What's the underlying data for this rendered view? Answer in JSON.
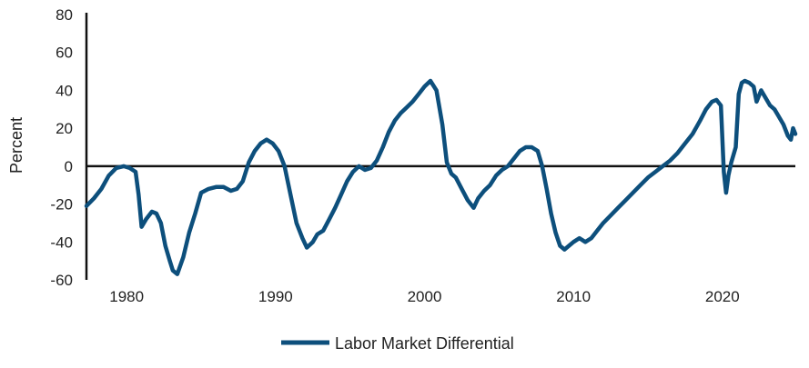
{
  "chart_data": {
    "type": "line",
    "title": "",
    "xlabel": "",
    "ylabel": "Percent",
    "xlim": [
      1977.3,
      2024.9
    ],
    "ylim": [
      -60,
      80
    ],
    "x_ticks": [
      1980,
      1990,
      2000,
      2010,
      2020
    ],
    "x_tick_labels": [
      "1980",
      "1990",
      "2000",
      "2010",
      "2020"
    ],
    "y_ticks": [
      80,
      60,
      40,
      20,
      0,
      -20,
      -40,
      -60
    ],
    "y_tick_labels": [
      "80",
      "60",
      "40",
      "20",
      "0",
      "-20",
      "-40",
      "-60"
    ],
    "zero_line": true,
    "grid": false,
    "legend_position": "bottom-center",
    "colors": {
      "series": "#0d4f7c",
      "axis": "#111111",
      "text": "#222222"
    },
    "series": [
      {
        "name": "Labor Market Differential",
        "x": [
          1977.3,
          1977.8,
          1978.3,
          1978.8,
          1979.3,
          1979.8,
          1980.2,
          1980.6,
          1980.8,
          1981.0,
          1981.3,
          1981.7,
          1982.0,
          1982.3,
          1982.6,
          1982.9,
          1983.1,
          1983.4,
          1983.8,
          1984.2,
          1984.6,
          1985.0,
          1985.5,
          1986.0,
          1986.5,
          1987.0,
          1987.4,
          1987.8,
          1988.2,
          1988.6,
          1989.0,
          1989.4,
          1989.8,
          1990.2,
          1990.6,
          1991.0,
          1991.4,
          1991.8,
          1992.1,
          1992.5,
          1992.8,
          1993.2,
          1993.6,
          1994.0,
          1994.4,
          1994.8,
          1995.2,
          1995.6,
          1996.0,
          1996.4,
          1996.8,
          1997.2,
          1997.6,
          1998.0,
          1998.4,
          1998.8,
          1999.2,
          1999.6,
          2000.0,
          2000.4,
          2000.8,
          2001.2,
          2001.5,
          2001.8,
          2002.1,
          2002.5,
          2002.9,
          2003.3,
          2003.6,
          2004.0,
          2004.4,
          2004.8,
          2005.2,
          2005.6,
          2006.0,
          2006.4,
          2006.8,
          2007.2,
          2007.6,
          2007.9,
          2008.2,
          2008.5,
          2008.8,
          2009.1,
          2009.4,
          2009.7,
          2010.0,
          2010.4,
          2010.8,
          2011.2,
          2011.6,
          2012.0,
          2012.5,
          2013.0,
          2013.5,
          2014.0,
          2014.5,
          2015.0,
          2015.5,
          2016.0,
          2016.5,
          2017.0,
          2017.5,
          2018.0,
          2018.5,
          2018.9,
          2019.3,
          2019.6,
          2019.9,
          2020.1,
          2020.25,
          2020.4,
          2020.6,
          2020.9,
          2021.1,
          2021.3,
          2021.5,
          2021.8,
          2022.1,
          2022.3,
          2022.6,
          2022.9,
          2023.2,
          2023.5,
          2023.8,
          2024.1,
          2024.4,
          2024.6,
          2024.75,
          2024.9
        ],
        "y": [
          -21,
          -17,
          -12,
          -5,
          -1,
          0,
          -1,
          -3,
          -15,
          -32,
          -28,
          -24,
          -25,
          -30,
          -42,
          -50,
          -55,
          -57,
          -48,
          -35,
          -25,
          -14,
          -12,
          -11,
          -11,
          -13,
          -12,
          -8,
          2,
          8,
          12,
          14,
          12,
          8,
          0,
          -15,
          -30,
          -38,
          -43,
          -40,
          -36,
          -34,
          -28,
          -22,
          -15,
          -8,
          -3,
          0,
          -2,
          -1,
          3,
          10,
          18,
          24,
          28,
          31,
          34,
          38,
          42,
          45,
          40,
          22,
          2,
          -4,
          -6,
          -12,
          -18,
          -22,
          -17,
          -13,
          -10,
          -5,
          -2,
          0,
          4,
          8,
          10,
          10,
          8,
          0,
          -12,
          -25,
          -35,
          -42,
          -44,
          -42,
          -40,
          -38,
          -40,
          -38,
          -34,
          -30,
          -26,
          -22,
          -18,
          -14,
          -10,
          -6,
          -3,
          0,
          3,
          7,
          12,
          17,
          24,
          30,
          34,
          35,
          32,
          -3,
          -14,
          -5,
          2,
          10,
          38,
          44,
          45,
          44,
          42,
          34,
          40,
          36,
          32,
          30,
          26,
          22,
          16,
          14,
          20,
          17
        ]
      }
    ]
  }
}
